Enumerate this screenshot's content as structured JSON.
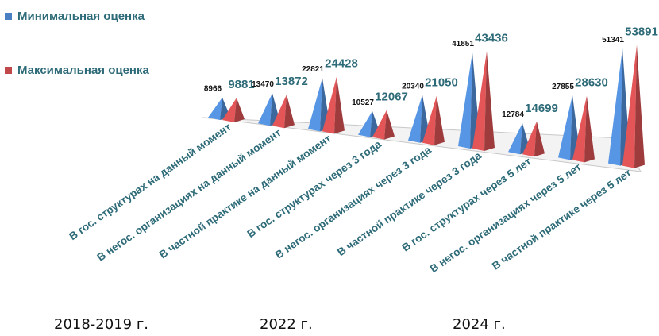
{
  "chart_data": {
    "type": "bar",
    "categories": [
      "В гос. структурах на данный момент",
      "В негос. организациях на данный момент",
      "В частной практике на данный момент",
      "В гос. структурах через 3 года",
      "В негос. организациях через 3 года",
      "В частной практике через 3 года",
      "В гос. структурах через 5 лет",
      "В негос. организациях через 5 лет",
      "В частной практике через 5 лет"
    ],
    "series": [
      {
        "name": "Минимальная оценка",
        "color": "#4a7fc1",
        "values": [
          8966,
          13470,
          22821,
          10527,
          20340,
          41851,
          12784,
          27855,
          51341
        ]
      },
      {
        "name": "Максимальная оценка",
        "color": "#c0484a",
        "values": [
          9881,
          13872,
          24428,
          12067,
          21050,
          43436,
          14699,
          28630,
          53891
        ]
      }
    ],
    "group_labels": [
      "2018-2019 г.",
      "2022 г.",
      "2024 г."
    ],
    "title": "",
    "xlabel": "",
    "ylabel": "",
    "ylim": [
      0,
      55000
    ],
    "grid": false,
    "legend_position": "top-left"
  }
}
